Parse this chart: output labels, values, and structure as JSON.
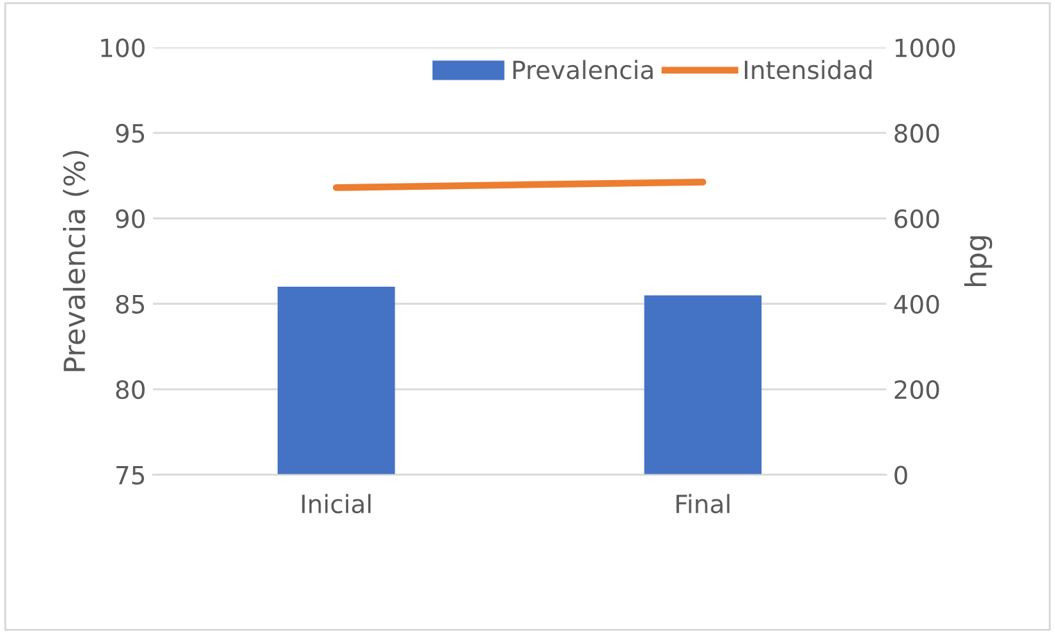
{
  "chart_data": {
    "type": "bar",
    "ylabel": "Prevalencia (%)",
    "y2label": "hpg",
    "categories": [
      "Inicial",
      "Final"
    ],
    "series": [
      {
        "name": "Prevalencia",
        "color": "#4472c4",
        "values": [
          86.0,
          85.5
        ]
      },
      {
        "name": "Intensidad",
        "type": "line",
        "axis": "y2",
        "color": "#ed7d31",
        "values": [
          672,
          685
        ]
      }
    ],
    "ylim": [
      75,
      100
    ],
    "yticks": [
      75,
      80,
      85,
      90,
      95,
      100
    ],
    "y2lim": [
      0,
      1000
    ],
    "y2ticks": [
      0,
      200,
      400,
      600,
      800,
      1000
    ],
    "grid": "y",
    "legend": "top right"
  }
}
